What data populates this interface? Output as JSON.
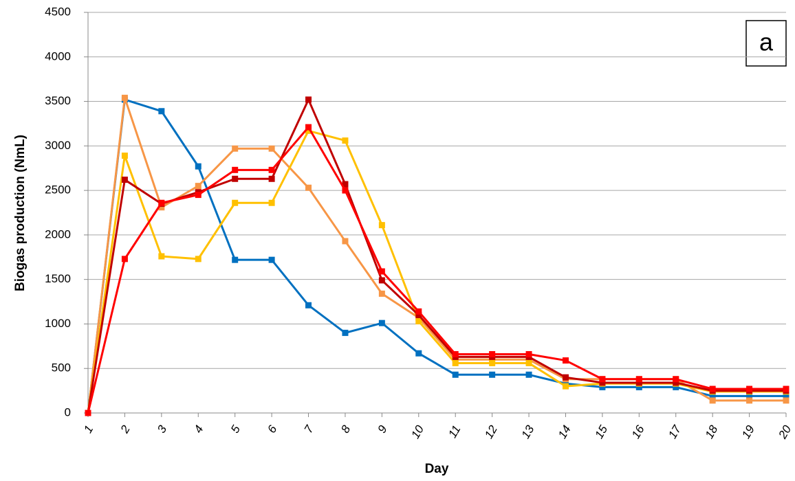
{
  "chart_data": {
    "type": "line",
    "y_label": "Biogas production (NmL)",
    "x_label": "Day",
    "annotation": "a",
    "categories": [
      "1",
      "2",
      "3",
      "4",
      "5",
      "6",
      "7",
      "8",
      "9",
      "10",
      "11",
      "12",
      "13",
      "14",
      "15",
      "16",
      "17",
      "18",
      "19",
      "20"
    ],
    "series": [
      {
        "color": "#0070c0",
        "values": [
          0,
          3520,
          3390,
          2770,
          1720,
          1720,
          1210,
          900,
          1010,
          670,
          430,
          430,
          430,
          330,
          290,
          290,
          290,
          190,
          190,
          190
        ]
      },
      {
        "color": "#f79646",
        "values": [
          0,
          3540,
          2310,
          2550,
          2970,
          2970,
          2530,
          1930,
          1340,
          1070,
          600,
          600,
          600,
          380,
          380,
          380,
          380,
          140,
          140,
          140
        ]
      },
      {
        "color": "#ffc000",
        "values": [
          0,
          2890,
          1760,
          1730,
          2360,
          2360,
          3170,
          3060,
          2110,
          1030,
          560,
          560,
          560,
          300,
          330,
          330,
          330,
          240,
          240,
          240
        ]
      },
      {
        "color": "#c00000",
        "values": [
          0,
          2620,
          2350,
          2480,
          2630,
          2630,
          3520,
          2570,
          1490,
          1100,
          630,
          630,
          630,
          400,
          340,
          340,
          340,
          250,
          250,
          250
        ]
      },
      {
        "color": "#ff0000",
        "values": [
          0,
          1730,
          2360,
          2450,
          2730,
          2730,
          3210,
          2500,
          1590,
          1140,
          660,
          660,
          660,
          590,
          380,
          380,
          380,
          270,
          270,
          270
        ]
      }
    ],
    "ylim": [
      0,
      4500
    ],
    "yticks": [
      0,
      500,
      1000,
      1500,
      2000,
      2500,
      3000,
      3500,
      4000,
      4500
    ],
    "grid": true
  }
}
